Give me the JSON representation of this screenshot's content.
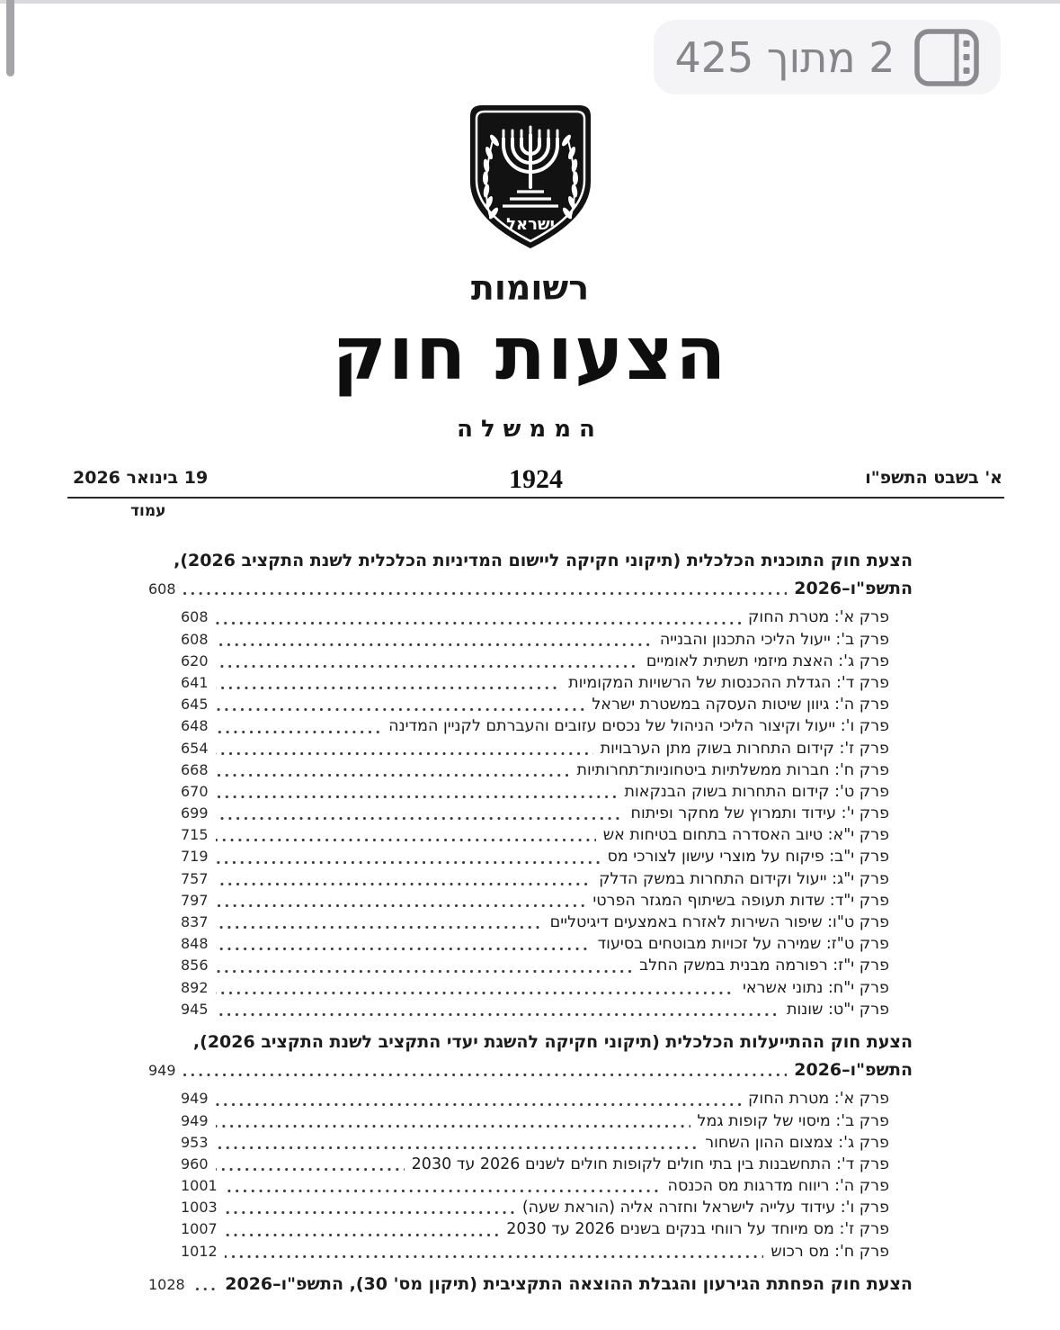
{
  "viewer": {
    "page_indicator": "2 מתוך 425",
    "sidebar_icon": "sidebar-thumbnails-icon",
    "icon_color": "#8a8a8f",
    "pill_bg": "#f4f4f6"
  },
  "masthead": {
    "emblem": "israel-state-emblem",
    "emblem_caption": "ישראל",
    "reshumot": "רשומות",
    "title": "הצעות חוק",
    "subtitle": "הממשלה",
    "hebrew_date": "א' בשבט התשפ\"ו",
    "issue_number": "1924",
    "gregorian_date": "19 בינואר 2026",
    "page_column_label": "עמוד"
  },
  "toc": {
    "sections": [
      {
        "title_line1": "הצעת חוק התוכנית הכלכלית (תיקוני חקיקה ליישום המדיניות הכלכלית לשנת התקציב 2026),",
        "title_line2": "התשפ\"ו–2026",
        "page": "608",
        "chapters": [
          {
            "label": "פרק א': מטרת החוק",
            "page": "608"
          },
          {
            "label": "פרק ב': ייעול הליכי התכנון והבנייה",
            "page": "608"
          },
          {
            "label": "פרק ג': האצת מיזמי תשתית לאומיים",
            "page": "620"
          },
          {
            "label": "פרק ד': הגדלת ההכנסות של הרשויות המקומיות",
            "page": "641"
          },
          {
            "label": "פרק ה': גיוון שיטות העסקה במשטרת ישראל",
            "page": "645"
          },
          {
            "label": "פרק ו': ייעול וקיצור הליכי הניהול של נכסים עזובים והעברתם לקניין המדינה",
            "page": "648"
          },
          {
            "label": "פרק ז': קידום התחרות בשוק מתן הערבויות",
            "page": "654"
          },
          {
            "label": "פרק ח': חברות ממשלתיות ביטחוניות־תחרותיות",
            "page": "668"
          },
          {
            "label": "פרק ט': קידום התחרות בשוק הבנקאות",
            "page": "670"
          },
          {
            "label": "פרק י': עידוד ותמרוץ של מחקר ופיתוח",
            "page": "699"
          },
          {
            "label": "פרק י\"א: טיוב האסדרה בתחום בטיחות אש",
            "page": "715"
          },
          {
            "label": "פרק י\"ב: פיקוח על מוצרי עישון לצורכי מס",
            "page": "719"
          },
          {
            "label": "פרק י\"ג: ייעול וקידום התחרות במשק הדלק",
            "page": "757"
          },
          {
            "label": "פרק י\"ד: שדות תעופה בשיתוף המגזר הפרטי",
            "page": "797"
          },
          {
            "label": "פרק ט\"ו: שיפור השירות לאזרח באמצעים דיגיטליים",
            "page": "837"
          },
          {
            "label": "פרק ט\"ז: שמירה על זכויות מבוטחים בסיעוד",
            "page": "848"
          },
          {
            "label": "פרק י\"ז: רפורמה מבנית במשק החלב",
            "page": "856"
          },
          {
            "label": "פרק י\"ח: נתוני אשראי",
            "page": "892"
          },
          {
            "label": "פרק י\"ט: שונות",
            "page": "945"
          }
        ]
      },
      {
        "title_line1": "הצעת חוק ההתייעלות הכלכלית (תיקוני חקיקה להשגת יעדי התקציב לשנת התקציב 2026),",
        "title_line2": "התשפ\"ו–2026",
        "page": "949",
        "chapters": [
          {
            "label": "פרק א': מטרת החוק",
            "page": "949"
          },
          {
            "label": "פרק ב': מיסוי של קופות גמל",
            "page": "949"
          },
          {
            "label": "פרק ג': צמצום ההון השחור",
            "page": "953"
          },
          {
            "label": "פרק ד': התחשבנות בין בתי חולים לקופות חולים לשנים 2026 עד 2030",
            "page": "960"
          },
          {
            "label": "פרק ה': ריווח מדרגות מס הכנסה",
            "page": "1001"
          },
          {
            "label": "פרק ו': עידוד עלייה לישראל וחזרה אליה (הוראת שעה)",
            "page": "1003"
          },
          {
            "label": "פרק ז': מס מיוחד על רווחי בנקים בשנים 2026 עד 2030",
            "page": "1007"
          },
          {
            "label": "פרק ח': מס רכוש",
            "page": "1012"
          }
        ]
      },
      {
        "title_line1": "הצעת חוק הפחתת הגירעון והגבלת ההוצאה התקציבית (תיקון מס' 30), התשפ\"ו–2026",
        "page": "1028",
        "chapters": []
      }
    ]
  }
}
